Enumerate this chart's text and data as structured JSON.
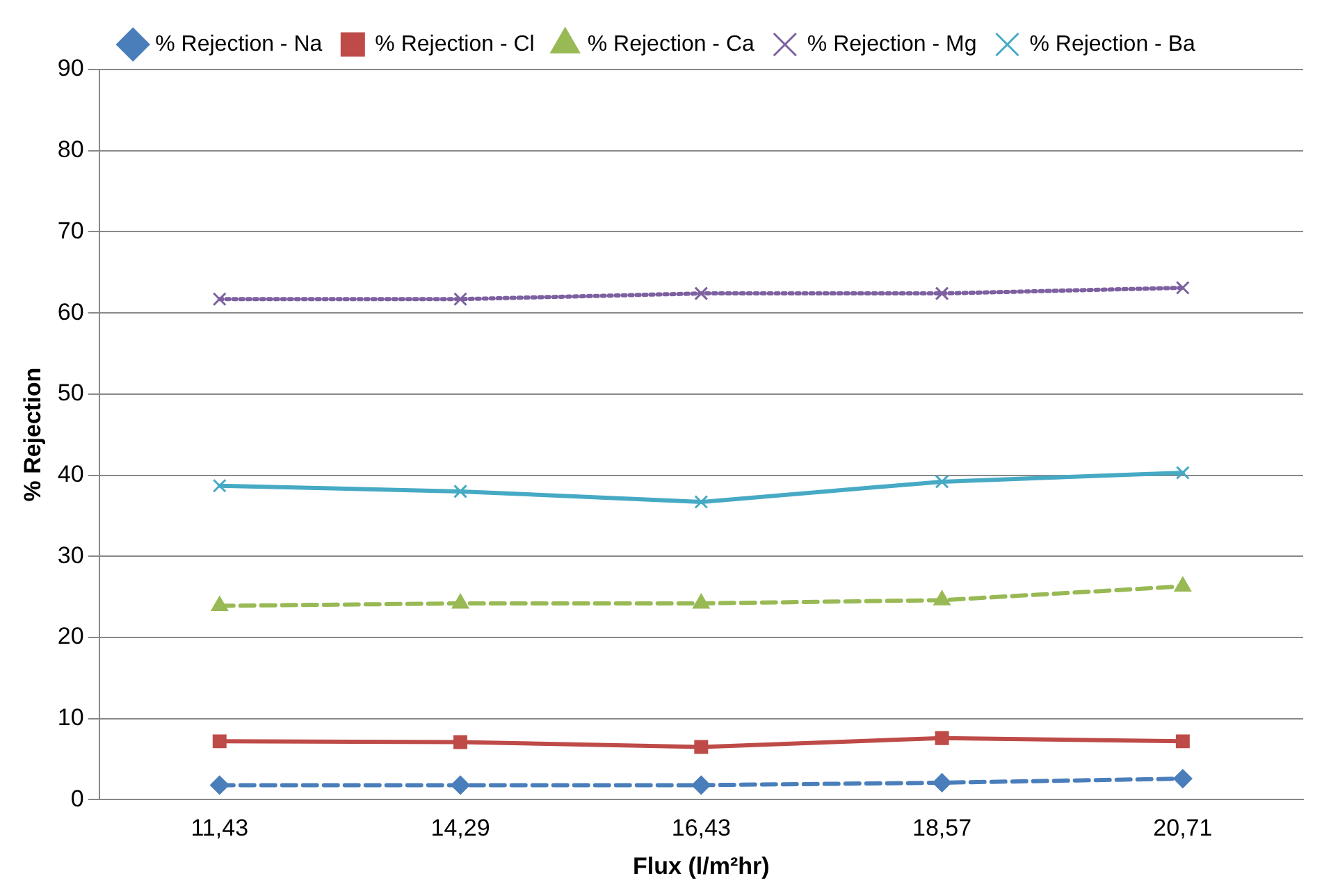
{
  "chart_data": {
    "type": "line",
    "xlabel": "Flux (l/m²hr)",
    "ylabel": "% Rejection",
    "categories": [
      "11,43",
      "14,29",
      "16,43",
      "18,57",
      "20,71"
    ],
    "ylim": [
      0,
      90
    ],
    "yticks": [
      0,
      10,
      20,
      30,
      40,
      50,
      60,
      70,
      80,
      90
    ],
    "grid": "y",
    "legend": "top",
    "series": [
      {
        "name": "% Rejection - Na",
        "color": "#4a7ebb",
        "marker": "diamond",
        "line_style": "dashed",
        "values": [
          1.8,
          1.8,
          1.8,
          2.1,
          2.6
        ]
      },
      {
        "name": "% Rejection - Cl",
        "color": "#be4b48",
        "marker": "square",
        "line_style": "solid",
        "values": [
          7.2,
          7.1,
          6.5,
          7.6,
          7.2
        ]
      },
      {
        "name": "% Rejection - Ca",
        "color": "#98b954",
        "marker": "triangle",
        "line_style": "dashed",
        "values": [
          23.9,
          24.2,
          24.2,
          24.6,
          26.3
        ]
      },
      {
        "name": "% Rejection - Mg",
        "color": "#7d60a0",
        "marker": "cross",
        "line_style": "dotted",
        "values": [
          61.7,
          61.7,
          62.4,
          62.4,
          63.1
        ]
      },
      {
        "name": "% Rejection - Ba",
        "color": "#46aac5",
        "marker": "cross",
        "line_style": "solid",
        "values": [
          38.7,
          38.0,
          36.7,
          39.2,
          40.3
        ]
      }
    ]
  }
}
